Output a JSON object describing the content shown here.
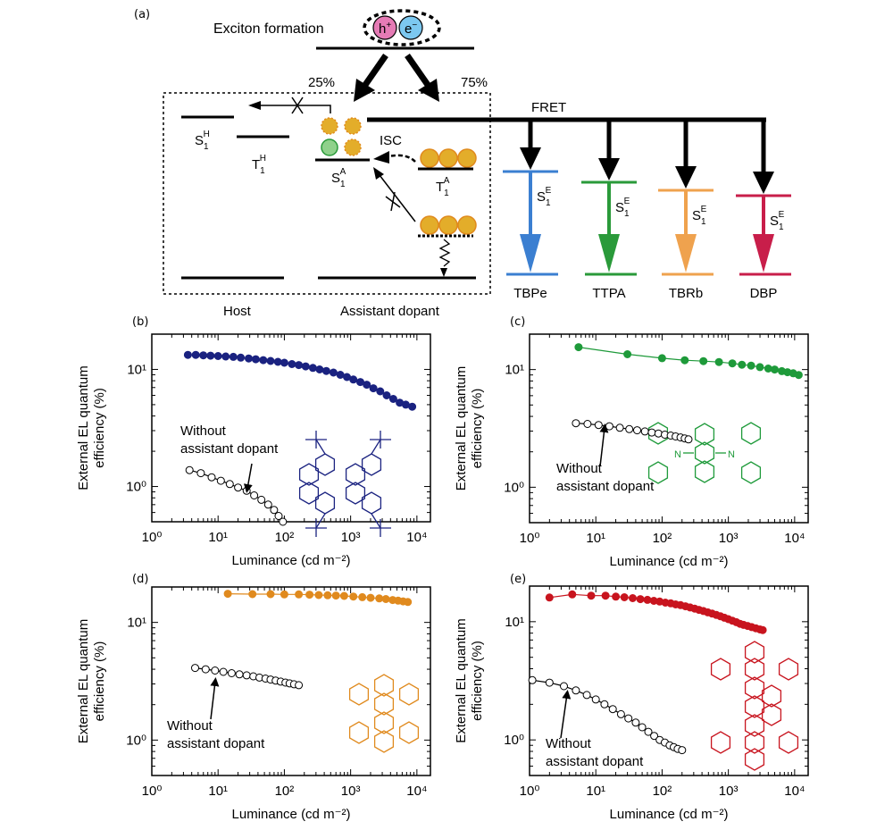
{
  "diagram": {
    "panel_label": "(a)",
    "exciton_label": "Exciton formation",
    "hole_label": "h",
    "hole_sup": "+",
    "electron_label": "e",
    "electron_sup": "−",
    "pct_singlet": "25%",
    "pct_triplet": "75%",
    "fret_label": "FRET",
    "isc_label": "ISC",
    "host_s1": {
      "main": "S",
      "sub": "1",
      "sup": "H"
    },
    "host_t1": {
      "main": "T",
      "sub": "1",
      "sup": "H"
    },
    "assist_s1": {
      "main": "S",
      "sub": "1",
      "sup": "A"
    },
    "assist_t1": {
      "main": "T",
      "sub": "1",
      "sup": "A"
    },
    "emitter_s1": {
      "main": "S",
      "sub": "1",
      "sup": "E"
    },
    "host_label": "Host",
    "assistant_label": "Assistant dopant",
    "emitters": [
      {
        "name": "TBPe",
        "color": "#3b7fd1"
      },
      {
        "name": "TTPA",
        "color": "#2a9a3a"
      },
      {
        "name": "TBRb",
        "color": "#efa24e"
      },
      {
        "name": "DBP",
        "color": "#c81e4a"
      }
    ],
    "colors": {
      "hole": "#e57bb5",
      "electron": "#7cc8f0",
      "exciton_gold": "#e3ad2a",
      "singlet_green": "#8fd18b"
    }
  },
  "chart_data": [
    {
      "panel": "(b)",
      "type": "scatter",
      "xscale": "log",
      "yscale": "log",
      "xlabel": "Luminance (cd m⁻²)",
      "ylabel_line1": "External EL quantum",
      "ylabel_line2": "efficiency (%)",
      "xlim": [
        1,
        16000
      ],
      "ylim": [
        0.5,
        20
      ],
      "xticks": [
        {
          "v": 1,
          "t": "10⁰"
        },
        {
          "v": 10,
          "t": "10¹"
        },
        {
          "v": 100,
          "t": "10²"
        },
        {
          "v": 1000,
          "t": "10³"
        },
        {
          "v": 10000,
          "t": "10⁴"
        }
      ],
      "yticks": [
        {
          "v": 1,
          "t": "10⁰"
        },
        {
          "v": 10,
          "t": "10¹"
        }
      ],
      "annotation": [
        "Without",
        "assistant dopant"
      ],
      "molecule": "TBPe",
      "series": [
        {
          "name": "With assistant dopant",
          "color": "#1a2280",
          "filled": true,
          "x": [
            3.5,
            4.6,
            6.0,
            7.7,
            10,
            13,
            17,
            22,
            29,
            37,
            48,
            62,
            80,
            100,
            130,
            165,
            210,
            270,
            340,
            430,
            550,
            700,
            880,
            1100,
            1400,
            1750,
            2200,
            2800,
            3500,
            4400,
            5500,
            6800,
            8500
          ],
          "y": [
            13.3,
            13.3,
            13.2,
            13.1,
            13.0,
            12.9,
            12.8,
            12.6,
            12.4,
            12.2,
            12.0,
            11.8,
            11.6,
            11.4,
            11.1,
            10.9,
            10.6,
            10.3,
            10.0,
            9.7,
            9.4,
            9.0,
            8.6,
            8.2,
            7.8,
            7.4,
            6.9,
            6.5,
            6.0,
            5.6,
            5.2,
            5.0,
            4.8
          ]
        },
        {
          "name": "Without assistant dopant",
          "color": "#000000",
          "filled": false,
          "x": [
            3.7,
            5.5,
            8,
            11,
            15,
            20,
            27,
            35,
            45,
            57,
            70,
            82,
            95
          ],
          "y": [
            1.38,
            1.3,
            1.2,
            1.12,
            1.05,
            0.98,
            0.92,
            0.84,
            0.77,
            0.7,
            0.63,
            0.56,
            0.5
          ]
        }
      ]
    },
    {
      "panel": "(c)",
      "type": "scatter",
      "xscale": "log",
      "yscale": "log",
      "xlabel": "Luminance (cd m⁻²)",
      "ylabel_line1": "External EL quantum",
      "ylabel_line2": "efficiency (%)",
      "xlim": [
        1,
        16000
      ],
      "ylim": [
        0.5,
        20
      ],
      "xticks": [
        {
          "v": 1,
          "t": "10⁰"
        },
        {
          "v": 10,
          "t": "10¹"
        },
        {
          "v": 100,
          "t": "10²"
        },
        {
          "v": 1000,
          "t": "10³"
        },
        {
          "v": 10000,
          "t": "10⁴"
        }
      ],
      "yticks": [
        {
          "v": 1,
          "t": "10⁰"
        },
        {
          "v": 10,
          "t": "10¹"
        }
      ],
      "annotation": [
        "Without",
        "assistant dopant"
      ],
      "molecule": "TTPA",
      "series": [
        {
          "name": "With assistant dopant",
          "color": "#1e9a3a",
          "filled": true,
          "x": [
            5.5,
            30,
            100,
            220,
            420,
            720,
            1150,
            1600,
            2200,
            3000,
            4000,
            5000,
            6400,
            7800,
            9500,
            11500
          ],
          "y": [
            15.5,
            13.5,
            12.5,
            12.0,
            11.8,
            11.6,
            11.3,
            11.0,
            10.8,
            10.5,
            10.2,
            10.0,
            9.7,
            9.5,
            9.3,
            9.0
          ]
        },
        {
          "name": "Without assistant dopant",
          "color": "#000000",
          "filled": false,
          "x": [
            5,
            7.5,
            11,
            16,
            23,
            32,
            42,
            55,
            70,
            88,
            110,
            135,
            160,
            190,
            220,
            250
          ],
          "y": [
            3.5,
            3.45,
            3.38,
            3.3,
            3.2,
            3.12,
            3.05,
            2.98,
            2.92,
            2.86,
            2.8,
            2.75,
            2.7,
            2.65,
            2.6,
            2.55
          ]
        }
      ]
    },
    {
      "panel": "(d)",
      "type": "scatter",
      "xscale": "log",
      "yscale": "log",
      "xlabel": "Luminance (cd m⁻²)",
      "ylabel_line1": "External EL quantum",
      "ylabel_line2": "efficiency (%)",
      "xlim": [
        1,
        16000
      ],
      "ylim": [
        0.5,
        20
      ],
      "xticks": [
        {
          "v": 1,
          "t": "10⁰"
        },
        {
          "v": 10,
          "t": "10¹"
        },
        {
          "v": 100,
          "t": "10²"
        },
        {
          "v": 1000,
          "t": "10³"
        },
        {
          "v": 10000,
          "t": "10⁴"
        }
      ],
      "yticks": [
        {
          "v": 1,
          "t": "10⁰"
        },
        {
          "v": 10,
          "t": "10¹"
        }
      ],
      "annotation": [
        "Without",
        "assistant dopant"
      ],
      "molecule": "TBRb",
      "series": [
        {
          "name": "With assistant dopant",
          "color": "#e08a1e",
          "filled": true,
          "x": [
            14,
            33,
            62,
            100,
            165,
            240,
            330,
            450,
            600,
            800,
            1100,
            1500,
            2000,
            2700,
            3400,
            4300,
            5200,
            6200,
            7300
          ],
          "y": [
            17.5,
            17.4,
            17.4,
            17.3,
            17.3,
            17.2,
            17.1,
            17.0,
            16.9,
            16.8,
            16.6,
            16.4,
            16.2,
            16.0,
            15.8,
            15.5,
            15.3,
            15.1,
            14.9
          ]
        },
        {
          "name": "Without assistant dopant",
          "color": "#000000",
          "filled": false,
          "x": [
            4.5,
            6.5,
            9,
            12,
            16,
            21,
            27,
            34,
            42,
            52,
            62,
            74,
            88,
            104,
            120,
            140,
            165
          ],
          "y": [
            4.1,
            4.0,
            3.9,
            3.8,
            3.7,
            3.62,
            3.55,
            3.48,
            3.4,
            3.33,
            3.27,
            3.2,
            3.14,
            3.08,
            3.03,
            2.98,
            2.93
          ]
        }
      ]
    },
    {
      "panel": "(e)",
      "type": "scatter",
      "xscale": "log",
      "yscale": "log",
      "xlabel": "Luminance (cd m⁻²)",
      "ylabel_line1": "External EL quantum",
      "ylabel_line2": "efficiency (%)",
      "xlim": [
        1,
        16000
      ],
      "ylim": [
        0.5,
        20
      ],
      "xticks": [
        {
          "v": 1,
          "t": "10⁰"
        },
        {
          "v": 10,
          "t": "10¹"
        },
        {
          "v": 100,
          "t": "10²"
        },
        {
          "v": 1000,
          "t": "10³"
        },
        {
          "v": 10000,
          "t": "10⁴"
        }
      ],
      "yticks": [
        {
          "v": 1,
          "t": "10⁰"
        },
        {
          "v": 10,
          "t": "10¹"
        }
      ],
      "annotation": [
        "Without",
        "assistant dopant"
      ],
      "molecule": "DBP",
      "series": [
        {
          "name": "With assistant dopant",
          "color": "#c8141e",
          "filled": true,
          "x": [
            2.0,
            4.4,
            8.5,
            14,
            20,
            27,
            36,
            47,
            60,
            75,
            92,
            112,
            135,
            160,
            190,
            225,
            265,
            310,
            360,
            420,
            490,
            570,
            660,
            760,
            870,
            1000,
            1150,
            1320,
            1500,
            1700,
            1950,
            2250,
            2600,
            3000,
            3300
          ],
          "y": [
            16.0,
            17.0,
            16.6,
            16.6,
            16.3,
            16.1,
            15.8,
            15.5,
            15.3,
            15.0,
            14.8,
            14.5,
            14.3,
            14.0,
            13.8,
            13.5,
            13.2,
            12.9,
            12.6,
            12.3,
            12.0,
            11.7,
            11.4,
            11.1,
            10.8,
            10.5,
            10.2,
            9.9,
            9.6,
            9.4,
            9.2,
            9.0,
            8.8,
            8.6,
            8.5
          ]
        },
        {
          "name": "Without assistant dopant",
          "color": "#000000",
          "filled": false,
          "x": [
            1.1,
            2.0,
            3.3,
            5.0,
            7.3,
            10,
            13.5,
            18,
            24,
            31,
            40,
            50,
            62,
            76,
            92,
            110,
            130,
            150,
            172,
            200
          ],
          "y": [
            3.2,
            3.05,
            2.85,
            2.62,
            2.4,
            2.2,
            2.0,
            1.82,
            1.65,
            1.52,
            1.4,
            1.28,
            1.17,
            1.08,
            1.0,
            0.95,
            0.9,
            0.87,
            0.84,
            0.82
          ]
        }
      ]
    }
  ]
}
